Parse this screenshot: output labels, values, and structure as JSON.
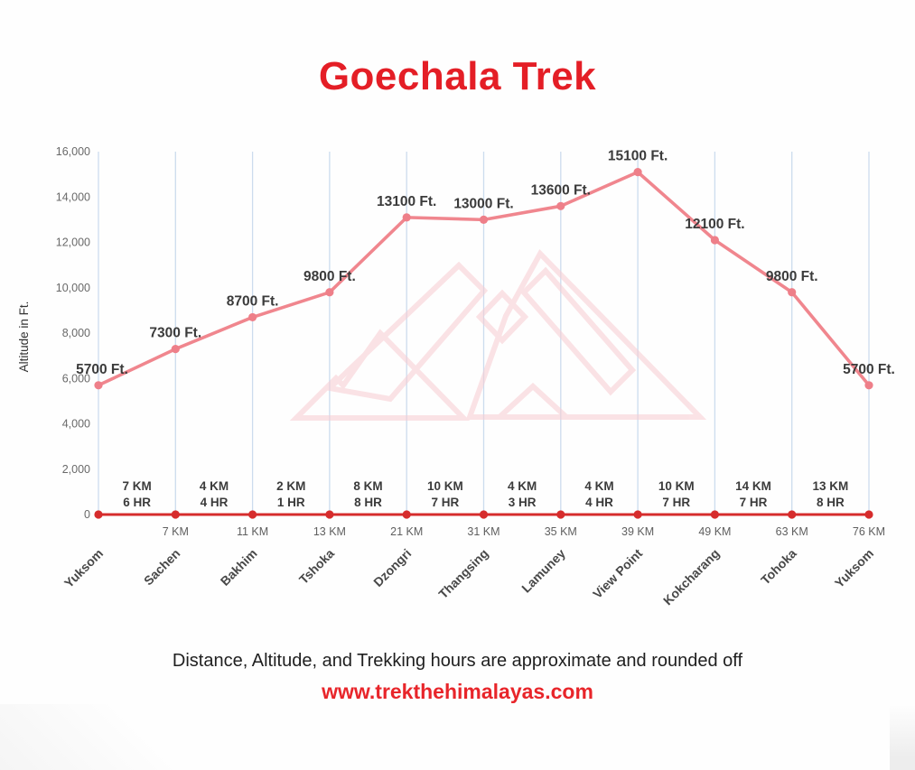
{
  "page": {
    "title": "Goechala Trek",
    "footer_note": "Distance, Altitude, and Trekking hours are approximate and rounded off",
    "website": "www.trekthehimalayas.com"
  },
  "colors": {
    "title_red": "#e41e26",
    "website_red": "#e8252a",
    "trek_line": "#f0868e",
    "trek_marker": "#ee7f89",
    "baseline_red": "#d62c2c",
    "gridline_blue": "#ccdcee",
    "tick_text": "#696969",
    "km_text": "#5f5f5f",
    "label_text": "#3b3b3b",
    "station_text": "#474747",
    "watermark_pink": "#f8ccd1"
  },
  "chart_data": {
    "type": "line",
    "title": "Goechala Trek",
    "xlabel": "",
    "ylabel": "Altitude in Ft.",
    "ylim": [
      0,
      16000
    ],
    "grid": "vertical-only",
    "legend": "none",
    "yticks": [
      0,
      2000,
      4000,
      6000,
      8000,
      10000,
      12000,
      14000,
      16000
    ],
    "ytick_labels": [
      "0",
      "2,000",
      "4,000",
      "6,000",
      "8,000",
      "10,000",
      "12,000",
      "14,000",
      "16,000"
    ],
    "categories": [
      "Yuksom",
      "Sachen",
      "Bakhim",
      "Tshoka",
      "Dzongri",
      "Thangsing",
      "Lamuney",
      "View Point",
      "Kokcharang",
      "Tohoka",
      "Yuksom"
    ],
    "series": [
      {
        "name": "Altitude (Ft.)",
        "values": [
          5700,
          7300,
          8700,
          9800,
          13100,
          13000,
          13600,
          15100,
          12100,
          9800,
          5700
        ]
      }
    ],
    "point_labels": [
      "5700 Ft.",
      "7300 Ft.",
      "8700 Ft.",
      "9800 Ft.",
      "13100 Ft.",
      "13000 Ft.",
      "13600 Ft.",
      "15100 Ft.",
      "12100 Ft.",
      "9800 Ft.",
      "5700 Ft."
    ],
    "cumulative_distance_labels": [
      "7 KM",
      "11 KM",
      "13 KM",
      "21 KM",
      "31 KM",
      "35 KM",
      "39 KM",
      "49 KM",
      "63 KM",
      "76 KM"
    ],
    "segments": [
      {
        "km": "7 KM",
        "hr": "6 HR"
      },
      {
        "km": "4 KM",
        "hr": "4 HR"
      },
      {
        "km": "2 KM",
        "hr": "1 HR"
      },
      {
        "km": "8 KM",
        "hr": "8 HR"
      },
      {
        "km": "10 KM",
        "hr": "7 HR"
      },
      {
        "km": "4 KM",
        "hr": "3 HR"
      },
      {
        "km": "4 KM",
        "hr": "4 HR"
      },
      {
        "km": "10 KM",
        "hr": "7 HR"
      },
      {
        "km": "14 KM",
        "hr": "7 HR"
      },
      {
        "km": "13 KM",
        "hr": "8 HR"
      }
    ]
  }
}
